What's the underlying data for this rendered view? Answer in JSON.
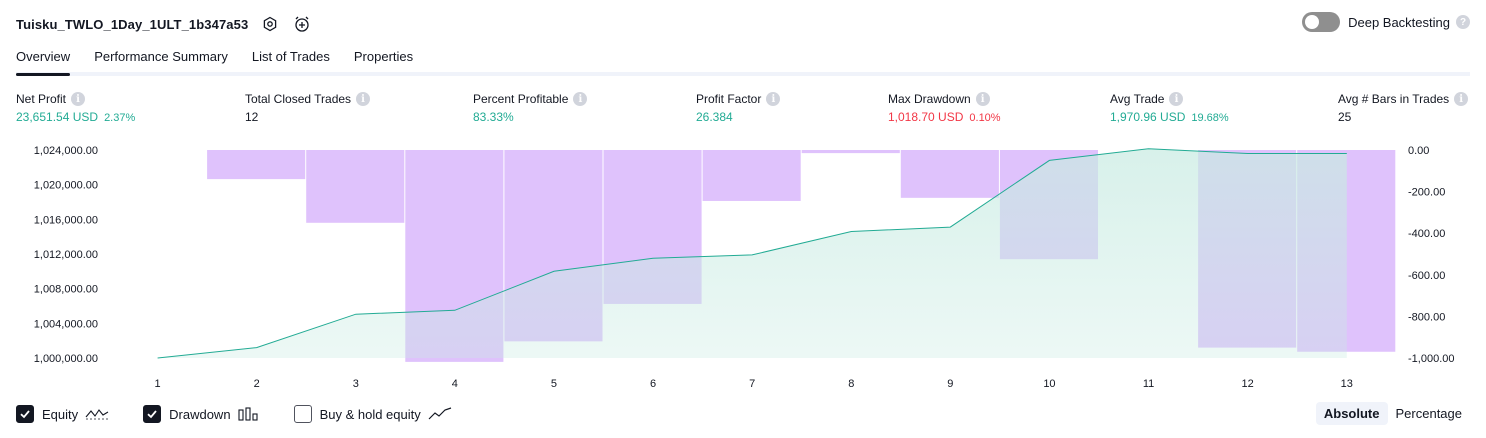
{
  "header": {
    "strategy_name": "Tuisku_TWLO_1Day_1ULT_1b347a53",
    "deep_backtesting_label": "Deep Backtesting",
    "help_glyph": "?"
  },
  "tabs": [
    {
      "label": "Overview",
      "active": true
    },
    {
      "label": "Performance Summary",
      "active": false
    },
    {
      "label": "List of Trades",
      "active": false
    },
    {
      "label": "Properties",
      "active": false
    }
  ],
  "metrics": {
    "info_glyph": "i",
    "net_profit": {
      "label": "Net Profit",
      "value": "23,651.54 USD",
      "percent": "2.37%"
    },
    "total_closed_trades": {
      "label": "Total Closed Trades",
      "value": "12"
    },
    "percent_profitable": {
      "label": "Percent Profitable",
      "value": "83.33%"
    },
    "profit_factor": {
      "label": "Profit Factor",
      "value": "26.384"
    },
    "max_drawdown": {
      "label": "Max Drawdown",
      "value": "1,018.70 USD",
      "percent": "0.10%"
    },
    "avg_trade": {
      "label": "Avg Trade",
      "value": "1,970.96 USD",
      "percent": "19.68%"
    },
    "avg_bars": {
      "label": "Avg # Bars in Trades",
      "value": "25"
    }
  },
  "chart_data": {
    "type": "area",
    "categories": [
      "1",
      "2",
      "3",
      "4",
      "5",
      "6",
      "7",
      "8",
      "9",
      "10",
      "11",
      "12",
      "13"
    ],
    "series": [
      {
        "name": "Equity",
        "type": "area",
        "axis": "left",
        "values": [
          1000000,
          1001200,
          1005050,
          1005500,
          1010000,
          1011500,
          1011900,
          1014600,
          1015100,
          1022800,
          1024150,
          1023600,
          1023600
        ]
      },
      {
        "name": "Drawdown",
        "type": "bar",
        "axis": "right",
        "values": [
          0,
          -140,
          -350,
          -1018.7,
          -920,
          -740,
          -245,
          -15,
          -230,
          -525,
          0,
          -950,
          -970
        ]
      }
    ],
    "left_axis": {
      "ticks": [
        "1,000,000.00",
        "1,004,000.00",
        "1,008,000.00",
        "1,012,000.00",
        "1,016,000.00",
        "1,020,000.00",
        "1,024,000.00"
      ],
      "ylim": [
        1000000,
        1024000
      ]
    },
    "right_axis": {
      "ticks": [
        "0.00",
        "-200.00",
        "-400.00",
        "-600.00",
        "-800.00",
        "-1,000.00"
      ],
      "ylim": [
        -1000,
        0
      ]
    },
    "colors": {
      "equity_line": "#22ab94",
      "equity_fill": "#c8ebe2",
      "drawdown_bar": "#cea1fb"
    }
  },
  "footer": {
    "equity": {
      "label": "Equity",
      "checked": true
    },
    "drawdown": {
      "label": "Drawdown",
      "checked": true
    },
    "buy_hold": {
      "label": "Buy & hold equity",
      "checked": false
    },
    "absolute_label": "Absolute",
    "percentage_label": "Percentage"
  }
}
